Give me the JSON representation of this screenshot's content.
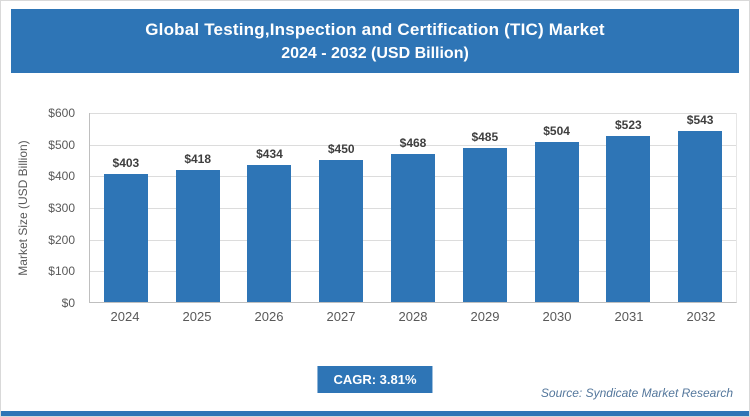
{
  "header": {
    "title_line1": "Global Testing,Inspection and Certification (TIC) Market",
    "title_line2": "2024 - 2032 (USD Billion)"
  },
  "chart_data": {
    "type": "bar",
    "categories": [
      "2024",
      "2025",
      "2026",
      "2027",
      "2028",
      "2029",
      "2030",
      "2031",
      "2032"
    ],
    "values": [
      403,
      418,
      434,
      450,
      468,
      485,
      504,
      523,
      543
    ],
    "value_labels": [
      "$403",
      "$418",
      "$434",
      "$450",
      "$468",
      "$485",
      "$504",
      "$523",
      "$543"
    ],
    "title": "Global Testing,Inspection and Certification (TIC) Market 2024 - 2032 (USD Billion)",
    "xlabel": "",
    "ylabel": "Market Size (USD Billion)",
    "ylim": [
      0,
      600
    ],
    "ytick_labels": [
      "$0",
      "$100",
      "$200",
      "$300",
      "$400",
      "$500",
      "$600"
    ],
    "grid": true,
    "legend_position": "none",
    "bar_color": "#2e75b6"
  },
  "footer": {
    "cagr_label": "CAGR: 3.81%",
    "source": "Source: Syndicate Market Research"
  },
  "colors": {
    "accent": "#2e75b6",
    "grid": "#dcdcdc",
    "axis_text": "#595959",
    "source_text": "#54779c"
  }
}
